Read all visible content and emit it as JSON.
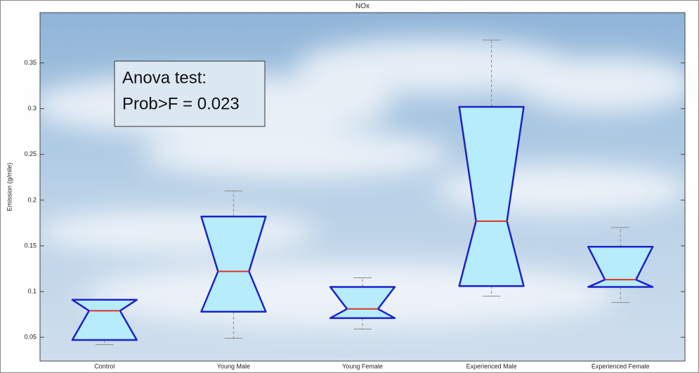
{
  "chart_data": {
    "type": "boxplot",
    "title": "NOx",
    "ylabel": "Emission (g/mile)",
    "categories": [
      "Control",
      "Young Male",
      "Young Female",
      "Experienced Male",
      "Experienced Female"
    ],
    "boxes": [
      {
        "low": 0.042,
        "q1": 0.047,
        "median": 0.079,
        "q3": 0.091,
        "high": 0.091
      },
      {
        "low": 0.049,
        "q1": 0.078,
        "median": 0.122,
        "q3": 0.182,
        "high": 0.21
      },
      {
        "low": 0.059,
        "q1": 0.071,
        "median": 0.081,
        "q3": 0.105,
        "high": 0.115
      },
      {
        "low": 0.095,
        "q1": 0.106,
        "median": 0.177,
        "q3": 0.302,
        "high": 0.375
      },
      {
        "low": 0.088,
        "q1": 0.105,
        "median": 0.113,
        "q3": 0.149,
        "high": 0.17
      }
    ],
    "box_fill": "#b6ecfb",
    "box_edge": "#1c22c8",
    "median_color": "#d9342a",
    "whisker_color": "#8a8a8a",
    "ylim": [
      0.024,
      0.405
    ],
    "yticks": [
      0.05,
      0.1,
      0.15,
      0.2,
      0.25,
      0.3,
      0.35
    ],
    "annotation": [
      "Anova test:",
      "Prob>F = 0.023"
    ]
  }
}
